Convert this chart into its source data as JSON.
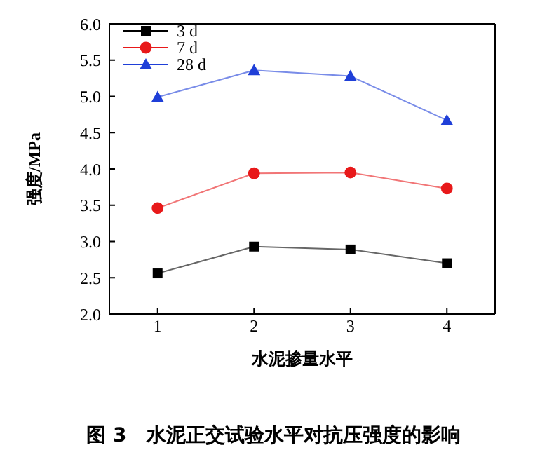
{
  "chart_data": {
    "type": "line",
    "title": "图 3　水泥正交试验水平对抗压强度的影响",
    "xlabel": "水泥掺量水平",
    "ylabel": "强度/MPa",
    "x": [
      1,
      2,
      3,
      4
    ],
    "xlim": [
      0.5,
      4.5
    ],
    "xticks": [
      1,
      2,
      3,
      4
    ],
    "ylim": [
      2.0,
      6.0
    ],
    "yticks": [
      {
        "value": 2,
        "label": "2.0"
      },
      {
        "value": 2.5,
        "label": "2.5"
      },
      {
        "value": 3,
        "label": "3.0"
      },
      {
        "value": 3.5,
        "label": "3.5"
      },
      {
        "value": 4,
        "label": "4.0"
      },
      {
        "value": 4.5,
        "label": "4.5"
      },
      {
        "value": 5,
        "label": "5.0"
      },
      {
        "value": 5.5,
        "label": "5.5"
      },
      {
        "value": 6,
        "label": "6.0"
      }
    ],
    "series": [
      {
        "name": "3 d",
        "color": "#000000",
        "marker": "square",
        "values": [
          2.56,
          2.93,
          2.89,
          2.7
        ]
      },
      {
        "name": "7 d",
        "color": "#e8191a",
        "marker": "circle",
        "values": [
          3.46,
          3.94,
          3.95,
          3.73
        ]
      },
      {
        "name": "28 d",
        "color": "#1f3fd8",
        "marker": "triangle",
        "values": [
          4.99,
          5.36,
          5.28,
          4.67
        ]
      }
    ],
    "legend": "top left"
  }
}
